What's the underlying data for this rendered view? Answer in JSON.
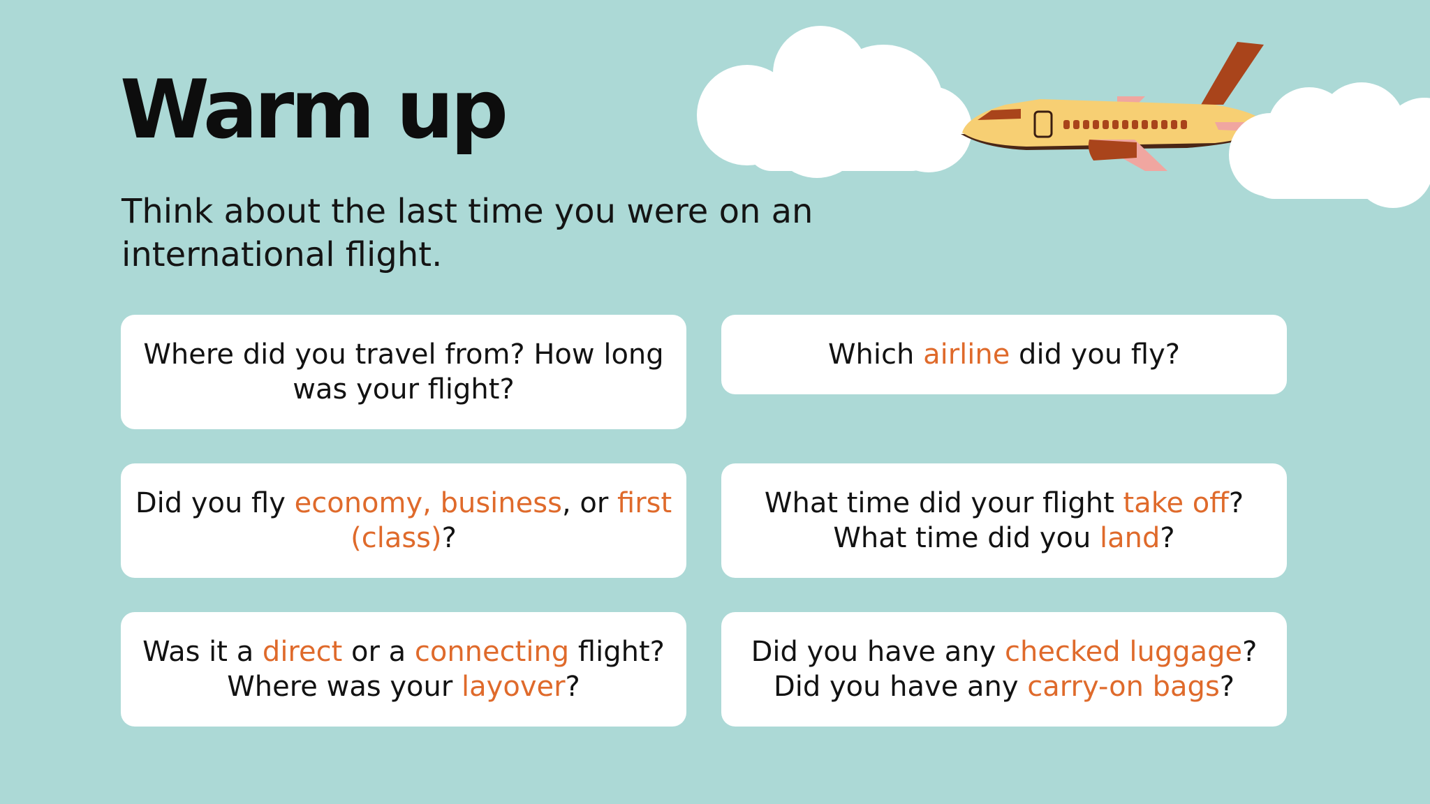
{
  "colors": {
    "background": "#acd9d6",
    "card": "#ffffff",
    "highlight": "#df6a2b",
    "text": "#111111"
  },
  "title": "Warm up",
  "subtitle": "Think about the last time you were on an international flight.",
  "cards": [
    {
      "lines": [
        [
          {
            "t": "Where did you travel from? How long"
          }
        ],
        [
          {
            "t": "was your flight?"
          }
        ]
      ]
    },
    {
      "lines": [
        [
          {
            "t": "Which "
          },
          {
            "t": "airline",
            "hl": true
          },
          {
            "t": " did you fly?"
          }
        ]
      ]
    },
    {
      "lines": [
        [
          {
            "t": "Did you fly "
          },
          {
            "t": "economy, business",
            "hl": true
          },
          {
            "t": ", or "
          },
          {
            "t": "first",
            "hl": true
          }
        ],
        [
          {
            "t": "(class)",
            "hl": true
          },
          {
            "t": "?"
          }
        ]
      ]
    },
    {
      "lines": [
        [
          {
            "t": "What time did your flight "
          },
          {
            "t": "take off",
            "hl": true
          },
          {
            "t": "?"
          }
        ],
        [
          {
            "t": "What time did you "
          },
          {
            "t": "land",
            "hl": true
          },
          {
            "t": "?"
          }
        ]
      ]
    },
    {
      "lines": [
        [
          {
            "t": "Was it a "
          },
          {
            "t": "direct",
            "hl": true
          },
          {
            "t": " or a "
          },
          {
            "t": "connecting",
            "hl": true
          },
          {
            "t": " flight?"
          }
        ],
        [
          {
            "t": "Where was your "
          },
          {
            "t": "layover",
            "hl": true
          },
          {
            "t": "?"
          }
        ]
      ]
    },
    {
      "lines": [
        [
          {
            "t": "Did you have any "
          },
          {
            "t": "checked luggage",
            "hl": true
          },
          {
            "t": "?"
          }
        ],
        [
          {
            "t": "Did you have any "
          },
          {
            "t": "carry-on bags",
            "hl": true
          },
          {
            "t": "?"
          }
        ]
      ]
    }
  ],
  "illustration": {
    "icons": [
      "cloud-icon",
      "airplane-icon"
    ]
  }
}
